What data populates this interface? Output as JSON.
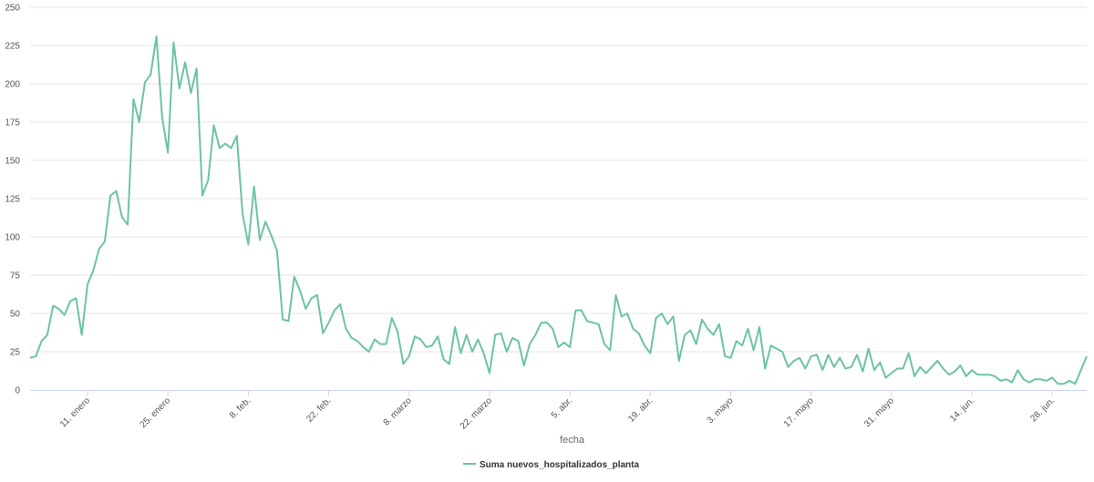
{
  "chart_data": {
    "type": "line",
    "xlabel": "fecha",
    "ylim": [
      0,
      250
    ],
    "y_ticks": [
      0,
      25,
      50,
      75,
      100,
      125,
      150,
      175,
      200,
      225,
      250
    ],
    "x_tick_labels": [
      "11. enero",
      "25. enero",
      "8. feb.",
      "22. feb.",
      "8. marzo",
      "22. marzo",
      "5. abr.",
      "19. abr.",
      "3. mayo",
      "17. mayo",
      "31. mayo",
      "14. jun.",
      "28. jun."
    ],
    "x_tick_day_index": [
      10,
      24,
      38,
      52,
      66,
      80,
      94,
      108,
      122,
      136,
      150,
      164,
      178
    ],
    "grid": "horizontal",
    "legend_position": "bottom-center",
    "colors": {
      "series": "#6cc3a4",
      "grid": "#e6e6e6",
      "axis": "#ccd6eb"
    },
    "series": [
      {
        "name": "Suma nuevos_hospitalizados_planta",
        "values": [
          21,
          22,
          32,
          36,
          55,
          53,
          49,
          58,
          60,
          36,
          69,
          78,
          92,
          97,
          127,
          130,
          113,
          108,
          190,
          175,
          201,
          206,
          231,
          178,
          155,
          227,
          197,
          214,
          194,
          210,
          127,
          137,
          173,
          158,
          161,
          158,
          166,
          115,
          95,
          133,
          98,
          110,
          101,
          91,
          46,
          45,
          74,
          65,
          53,
          60,
          62,
          37,
          44,
          52,
          56,
          40,
          34,
          32,
          28,
          25,
          33,
          30,
          30,
          47,
          38,
          17,
          22,
          35,
          33,
          28,
          29,
          35,
          20,
          17,
          41,
          24,
          36,
          25,
          33,
          24,
          11,
          36,
          37,
          25,
          34,
          32,
          16,
          30,
          36,
          44,
          44,
          40,
          28,
          31,
          28,
          52,
          52,
          45,
          44,
          43,
          30,
          26,
          62,
          48,
          50,
          40,
          37,
          29,
          24,
          47,
          50,
          43,
          48,
          19,
          36,
          39,
          30,
          46,
          40,
          36,
          43,
          22,
          21,
          32,
          29,
          40,
          26,
          41,
          14,
          29,
          27,
          25,
          15,
          19,
          21,
          14,
          22,
          23,
          13,
          23,
          15,
          21,
          14,
          15,
          23,
          12,
          27,
          13,
          18,
          8,
          11,
          14,
          14,
          24,
          9,
          15,
          11,
          15,
          19,
          14,
          10,
          12,
          16,
          9,
          13,
          10,
          10,
          10,
          9,
          6,
          7,
          5,
          13,
          7,
          5,
          7,
          7,
          6,
          8,
          4,
          4,
          6,
          4,
          13,
          22
        ]
      }
    ]
  }
}
